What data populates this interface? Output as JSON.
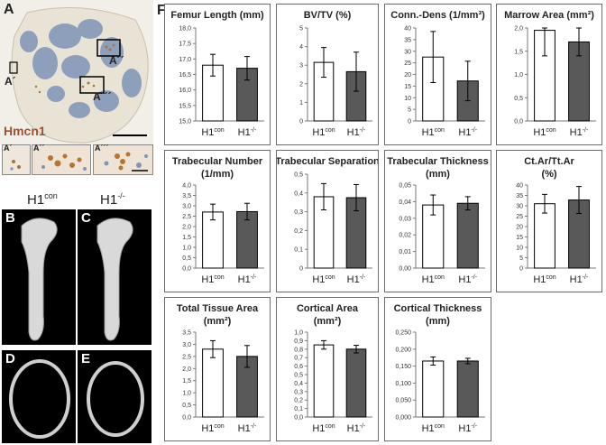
{
  "panels": {
    "A": "A",
    "B": "B",
    "C": "C",
    "D": "D",
    "E": "E",
    "F": "F",
    "inset_label": "A´",
    "inset_label_2": "A´´",
    "inset_label_3": "A´´´",
    "stain_label": "Hmcn1",
    "col_con": "H1",
    "col_con_sup": "con",
    "col_ko": "H1",
    "col_ko_sup": "-/-"
  },
  "colors": {
    "con_bar": "#ffffff",
    "ko_bar": "#595959",
    "bar_edge": "#000000",
    "stain_brown": "#a8743a",
    "tissue_blue": "#7f94b8",
    "stain_label": "#a0522d"
  },
  "chart_data": [
    {
      "type": "bar",
      "title": "Femur Length (mm)",
      "categories": [
        "H1con",
        "H1-/-"
      ],
      "values": [
        16.8,
        16.7
      ],
      "errors": [
        0.35,
        0.38
      ],
      "ylim": [
        15.0,
        18.0
      ],
      "yticks": [
        "15,0",
        "15,5",
        "16,0",
        "16,5",
        "17,0",
        "17,5",
        "18,0"
      ],
      "legend": []
    },
    {
      "type": "bar",
      "title": "BV/TV (%)",
      "categories": [
        "H1con",
        "H1-/-"
      ],
      "values": [
        3.15,
        2.65
      ],
      "errors": [
        0.8,
        1.05
      ],
      "ylim": [
        0,
        5
      ],
      "yticks": [
        "0",
        "1",
        "2",
        "3",
        "4",
        "5"
      ],
      "legend": []
    },
    {
      "type": "bar",
      "title": "Conn.-Dens (1/mm³)",
      "categories": [
        "H1con",
        "H1-/-"
      ],
      "values": [
        27.5,
        17.2
      ],
      "errors": [
        11,
        8.5
      ],
      "ylim": [
        0,
        40
      ],
      "yticks": [
        "0",
        "5",
        "10",
        "15",
        "20",
        "25",
        "30",
        "35",
        "40"
      ],
      "legend": []
    },
    {
      "type": "bar",
      "title": "Marrow Area (mm²)",
      "categories": [
        "H1con",
        "H1-/-"
      ],
      "values": [
        1.95,
        1.7
      ],
      "errors": [
        0.55,
        0.3
      ],
      "ylim": [
        0,
        2.0
      ],
      "yticks": [
        "0,0",
        "0,5",
        "1,0",
        "1,5",
        "2,0"
      ],
      "legend": []
    },
    {
      "type": "bar",
      "title": "Trabecular Number",
      "title2": "(1/mm)",
      "categories": [
        "H1con",
        "H1-/-"
      ],
      "values": [
        2.7,
        2.72
      ],
      "errors": [
        0.38,
        0.4
      ],
      "ylim": [
        0,
        4.0
      ],
      "yticks": [
        "0,0",
        "0,5",
        "1,0",
        "1,5",
        "2,0",
        "2,5",
        "3,0",
        "3,5",
        "4,0"
      ],
      "legend": []
    },
    {
      "type": "bar",
      "title": "Trabecular Separation",
      "categories": [
        "H1con",
        "H1-/-"
      ],
      "values": [
        0.38,
        0.375
      ],
      "errors": [
        0.07,
        0.07
      ],
      "ylim": [
        0,
        0.5
      ],
      "yticks": [
        "0",
        "0,1",
        "0,2",
        "0,3",
        "0,4",
        "0,5"
      ],
      "legend": []
    },
    {
      "type": "bar",
      "title": "Trabecular Thickness",
      "title2": "(mm)",
      "categories": [
        "H1con",
        "H1-/-"
      ],
      "values": [
        0.038,
        0.039
      ],
      "errors": [
        0.006,
        0.004
      ],
      "ylim": [
        0,
        0.05
      ],
      "yticks": [
        "0,00",
        "0,01",
        "0,02",
        "0,03",
        "0,04",
        "0,05"
      ],
      "legend": []
    },
    {
      "type": "bar",
      "title": "Ct.Ar/Tt.Ar",
      "title2": "(%)",
      "categories": [
        "H1con",
        "H1-/-"
      ],
      "values": [
        31,
        32.8
      ],
      "errors": [
        4.5,
        6.5
      ],
      "ylim": [
        0,
        40
      ],
      "yticks": [
        "0",
        "5",
        "10",
        "15",
        "20",
        "25",
        "30",
        "35",
        "40"
      ],
      "legend": []
    },
    {
      "type": "bar",
      "title": "Total Tissue Area",
      "title2": "(mm²)",
      "categories": [
        "H1con",
        "H1-/-"
      ],
      "values": [
        2.8,
        2.5
      ],
      "errors": [
        0.35,
        0.45
      ],
      "ylim": [
        0,
        3.5
      ],
      "yticks": [
        "0,0",
        "0,5",
        "1,0",
        "1,5",
        "2,0",
        "2,5",
        "3,0",
        "3,5"
      ],
      "legend": []
    },
    {
      "type": "bar",
      "title": "Cortical Area",
      "title2": "(mm²)",
      "categories": [
        "H1con",
        "H1-/-"
      ],
      "values": [
        0.85,
        0.8
      ],
      "errors": [
        0.05,
        0.045
      ],
      "ylim": [
        0,
        1.0
      ],
      "yticks": [
        "0,0",
        "0,1",
        "0,2",
        "0,3",
        "0,4",
        "0,5",
        "0,6",
        "0,7",
        "0,8",
        "0,9",
        "1,0"
      ],
      "legend": []
    },
    {
      "type": "bar",
      "title": "Cortical Thickness",
      "title2": "(mm)",
      "categories": [
        "H1con",
        "H1-/-"
      ],
      "values": [
        0.165,
        0.165
      ],
      "errors": [
        0.012,
        0.008
      ],
      "ylim": [
        0,
        0.25
      ],
      "yticks": [
        "0,000",
        "0,050",
        "0,100",
        "0,150",
        "0,200",
        "0,250"
      ],
      "legend": []
    }
  ]
}
